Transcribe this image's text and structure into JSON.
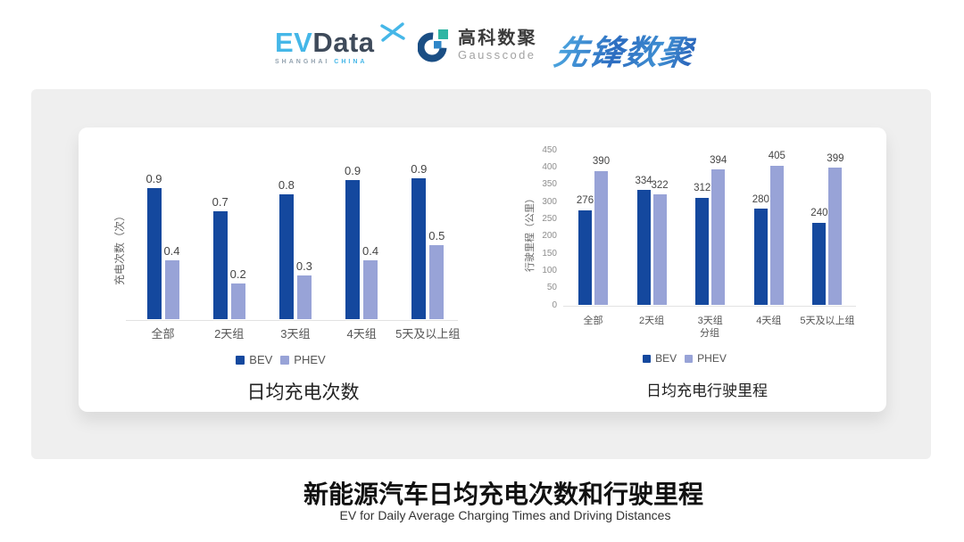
{
  "header": {
    "logos": {
      "evdata": {
        "ev": "EV",
        "data": "Data",
        "sub_left": "SHANGHAI",
        "sub_right": "CHINA"
      },
      "gausscode": {
        "cn": "高科数聚",
        "en": "Gausscode"
      },
      "pioneer": {
        "text": "先锋数聚"
      }
    }
  },
  "colors": {
    "bev": "#14489E",
    "phev": "#98A3D7"
  },
  "chart_data": [
    {
      "type": "bar",
      "title": "日均充电次数",
      "ylabel": "充电次数（次）",
      "xlabel": "",
      "categories": [
        "全部",
        "2天组",
        "3天组",
        "4天组",
        "5天及以上组"
      ],
      "series": [
        {
          "name": "BEV",
          "color": "#14489E",
          "values": [
            0.9,
            0.7,
            0.8,
            0.9,
            0.9
          ],
          "labels": [
            "0.9",
            "0.7",
            "0.8",
            "0.9",
            "0.9"
          ],
          "render_values": [
            0.855,
            0.709,
            0.814,
            0.907,
            0.919
          ]
        },
        {
          "name": "PHEV",
          "color": "#98A3D7",
          "values": [
            0.4,
            0.2,
            0.3,
            0.4,
            0.5
          ],
          "labels": [
            "0.4",
            "0.2",
            "0.3",
            "0.4",
            "0.5"
          ],
          "render_values": [
            0.384,
            0.238,
            0.285,
            0.384,
            0.483
          ]
        }
      ],
      "ylim": [
        0,
        1.0
      ],
      "yticks": [],
      "grid": false,
      "legend_position": "bottom"
    },
    {
      "type": "bar",
      "title": "日均充电行驶里程",
      "ylabel": "行驶里程（公里）",
      "xlabel": "分组",
      "categories": [
        "全部",
        "2天组",
        "3天组",
        "4天组",
        "5天及以上组"
      ],
      "series": [
        {
          "name": "BEV",
          "color": "#14489E",
          "values": [
            276,
            334,
            312,
            280,
            240
          ],
          "labels": [
            "276",
            "334",
            "312",
            "280",
            "240"
          ]
        },
        {
          "name": "PHEV",
          "color": "#98A3D7",
          "values": [
            390,
            322,
            394,
            405,
            399
          ],
          "labels": [
            "390",
            "322",
            "394",
            "405",
            "399"
          ]
        }
      ],
      "ylim": [
        0,
        450
      ],
      "yticks": [
        0,
        50,
        100,
        150,
        200,
        250,
        300,
        350,
        400,
        450
      ],
      "grid": false,
      "legend_position": "bottom"
    }
  ],
  "footer": {
    "title": "新能源汽车日均充电次数和行驶里程",
    "subtitle": "EV for Daily Average Charging Times and Driving Distances"
  }
}
